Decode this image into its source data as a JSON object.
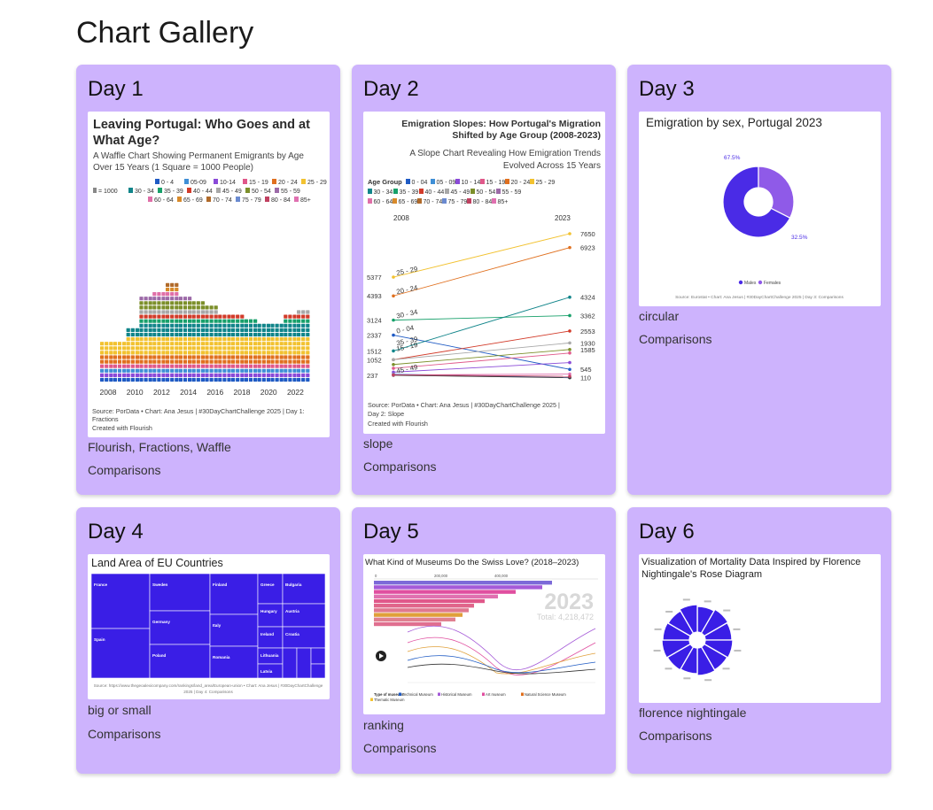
{
  "page": {
    "title": "Chart Gallery"
  },
  "cards": [
    {
      "day": "Day 1",
      "tags": "Flourish, Fractions, Waffle",
      "category": "Comparisons",
      "thumb": {
        "title": "Leaving Portugal: Who Goes and at What Age?",
        "subtitle": "A Waffle Chart Showing Permanent Emigrants by Age Over 15 Years (1 Square = 1000 People)",
        "legend": [
          "0 - 4",
          "05-09",
          "10-14",
          "15 - 19",
          "20 - 24",
          "25 - 29",
          "30 - 34",
          "35 - 39",
          "40 - 44",
          "45 - 49",
          "50 - 54",
          "55 - 59",
          "60 - 64",
          "65 - 69",
          "70 - 74",
          "75 - 79",
          "80 - 84",
          "85+"
        ],
        "legend_unit": "= 1000",
        "x_ticks": [
          "2008",
          "2010",
          "2012",
          "2014",
          "2016",
          "2018",
          "2020",
          "2022"
        ],
        "source": "Source: PorData • Chart: Ana Jesus | #30DayChartChallenge 2025 | Day 1: Fractions",
        "credit": "Created with Flourish"
      }
    },
    {
      "day": "Day 2",
      "tags": "slope",
      "category": "Comparisons",
      "thumb": {
        "title": "Emigration Slopes: How Portugal's Migration Shifted by Age Group (2008-2023)",
        "subtitle": "A Slope Chart Revealing How Emigration Trends Evolved Across 15 Years",
        "legend_label": "Age Group",
        "legend": [
          "0 - 04",
          "05 - 09",
          "10 - 14",
          "15 - 19",
          "20 - 24",
          "25 - 29",
          "30 - 34",
          "35 - 39",
          "40 - 44",
          "45 - 49",
          "50 - 54",
          "55 - 59",
          "60 - 64",
          "65 - 69",
          "70 - 74",
          "75 - 79",
          "80 - 84",
          "85+"
        ],
        "x_start": "2008",
        "x_end": "2023",
        "left_values": [
          "5377",
          "4393",
          "3124",
          "2337",
          "1512",
          "1052",
          "237"
        ],
        "left_labels": [
          "25 - 29",
          "20 - 24",
          "30 - 34",
          "0 - 04",
          "35 - 39",
          "15 - 19",
          "45 - 49"
        ],
        "right_values": [
          "7650",
          "6923",
          "4324",
          "3362",
          "2553",
          "1930",
          "1585",
          "545",
          "110"
        ],
        "source": "Source: PorData • Chart: Ana Jesus | #30DayChartChallenge 2025 | Day 2: Slope",
        "credit": "Created with Flourish"
      }
    },
    {
      "day": "Day 3",
      "tags": "circular",
      "category": "Comparisons",
      "thumb": {
        "title": "Emigration by sex, Portugal 2023",
        "label_a": "67.5%",
        "label_b": "32.5%",
        "legend_a": "Males",
        "legend_b": "Females",
        "source": "Source: Eurostat • Chart: Ana Jesus | #30DayChartChallenge 2025 | Day 3: Comparisons",
        "colors": {
          "males": "#4a2be6",
          "females": "#8f5ae8"
        }
      }
    },
    {
      "day": "Day 4",
      "tags": "big or small",
      "category": "Comparisons",
      "thumb": {
        "title": "Land Area of EU Countries",
        "countries": [
          "France",
          "Sweden",
          "Finland",
          "Greece",
          "Bulgaria",
          "Germany",
          "Italy",
          "Hungary",
          "Austria",
          "Ireland",
          "Croatia",
          "Spain",
          "Poland",
          "Romania",
          "Lithuania",
          "Latvia"
        ],
        "source": "Source: https://www.thegeoalexicompany.com/rankings/land_area/European-union • Chart: Ana Jesus | #30DayChartChallenge 2025 | Day 4: Comparisons",
        "color": "#3a1ee6"
      }
    },
    {
      "day": "Day 5",
      "tags": "ranking",
      "category": "Comparisons",
      "thumb": {
        "title": "What Kind of Museums Do the Swiss Love? (2018–2023)",
        "axis": [
          "0",
          "200,000",
          "400,000"
        ],
        "year": "2023",
        "total": "Total: 4,218,472",
        "legend_label": "Type of museum",
        "legend": [
          "Technical Museum",
          "Historical Museum",
          "Art museum",
          "Natural Science Museum",
          "Thematic Museum"
        ]
      }
    },
    {
      "day": "Day 6",
      "tags": "florence nightingale",
      "category": "Comparisons",
      "thumb": {
        "title": "Visualization of Mortality Data Inspired by Florence Nightingale's Rose Diagram",
        "color": "#3a1ee6"
      }
    }
  ]
}
